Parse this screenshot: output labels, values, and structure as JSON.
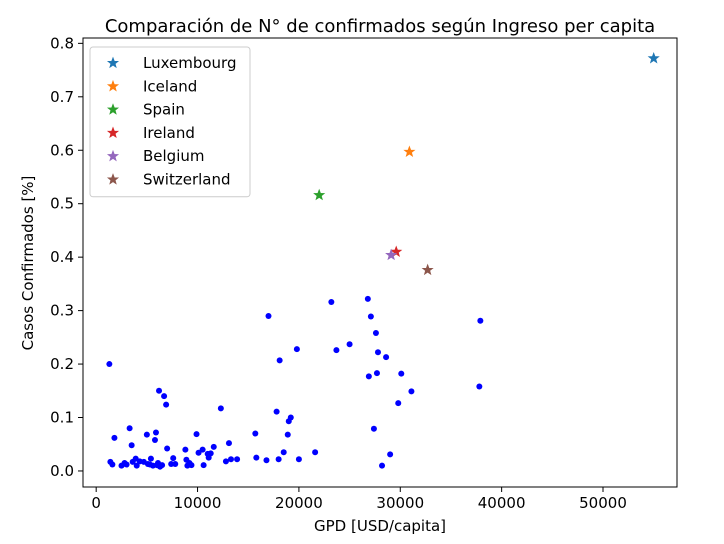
{
  "chart_data": {
    "type": "scatter",
    "title": "Comparación de N° de confirmados según Ingreso per capita",
    "xlabel": "GPD [USD/capita]",
    "ylabel": "Casos Confirmados [%]",
    "xlim": [
      -1300,
      57300
    ],
    "ylim": [
      -0.03,
      0.81
    ],
    "xticks": [
      0,
      10000,
      20000,
      30000,
      40000,
      50000
    ],
    "yticks": [
      0.0,
      0.1,
      0.2,
      0.3,
      0.4,
      0.5,
      0.6,
      0.7,
      0.8
    ],
    "xtick_labels": [
      "0",
      "10000",
      "20000",
      "30000",
      "40000",
      "50000"
    ],
    "ytick_labels": [
      "0.0",
      "0.1",
      "0.2",
      "0.3",
      "0.4",
      "0.5",
      "0.6",
      "0.7",
      "0.8"
    ],
    "legend_position": "top-left",
    "highlight_series": [
      {
        "name": "Luxembourg",
        "color": "#1f77b4",
        "marker": "star",
        "x": 55000,
        "y": 0.772
      },
      {
        "name": "Iceland",
        "color": "#ff7f0e",
        "marker": "star",
        "x": 30900,
        "y": 0.597
      },
      {
        "name": "Spain",
        "color": "#2ca02c",
        "marker": "star",
        "x": 22000,
        "y": 0.516
      },
      {
        "name": "Ireland",
        "color": "#d62728",
        "marker": "star",
        "x": 29600,
        "y": 0.41
      },
      {
        "name": "Belgium",
        "color": "#9467bd",
        "marker": "star",
        "x": 29100,
        "y": 0.404
      },
      {
        "name": "Switzerland",
        "color": "#8c564b",
        "marker": "star",
        "x": 32700,
        "y": 0.376
      }
    ],
    "other_countries": {
      "color": "#0000ff",
      "marker": "dot",
      "points": [
        [
          1300,
          0.2
        ],
        [
          1400,
          0.017
        ],
        [
          1600,
          0.012
        ],
        [
          1800,
          0.062
        ],
        [
          2500,
          0.01
        ],
        [
          2800,
          0.015
        ],
        [
          3000,
          0.012
        ],
        [
          3300,
          0.08
        ],
        [
          3500,
          0.048
        ],
        [
          3600,
          0.017
        ],
        [
          3900,
          0.023
        ],
        [
          4000,
          0.01
        ],
        [
          4300,
          0.018
        ],
        [
          4700,
          0.017
        ],
        [
          5000,
          0.068
        ],
        [
          5100,
          0.013
        ],
        [
          5300,
          0.012
        ],
        [
          5400,
          0.023
        ],
        [
          5600,
          0.01
        ],
        [
          5800,
          0.058
        ],
        [
          5900,
          0.072
        ],
        [
          6000,
          0.011
        ],
        [
          6100,
          0.015
        ],
        [
          6200,
          0.15
        ],
        [
          6300,
          0.008
        ],
        [
          6500,
          0.011
        ],
        [
          6700,
          0.14
        ],
        [
          6900,
          0.124
        ],
        [
          7000,
          0.042
        ],
        [
          7400,
          0.013
        ],
        [
          7600,
          0.024
        ],
        [
          7800,
          0.013
        ],
        [
          8800,
          0.04
        ],
        [
          8900,
          0.021
        ],
        [
          9000,
          0.01
        ],
        [
          9200,
          0.015
        ],
        [
          9400,
          0.011
        ],
        [
          9900,
          0.069
        ],
        [
          10100,
          0.034
        ],
        [
          10500,
          0.04
        ],
        [
          10600,
          0.011
        ],
        [
          11000,
          0.032
        ],
        [
          11100,
          0.025
        ],
        [
          11300,
          0.033
        ],
        [
          11600,
          0.045
        ],
        [
          12300,
          0.117
        ],
        [
          12800,
          0.018
        ],
        [
          13100,
          0.052
        ],
        [
          13300,
          0.022
        ],
        [
          13900,
          0.022
        ],
        [
          15700,
          0.07
        ],
        [
          15800,
          0.025
        ],
        [
          16800,
          0.02
        ],
        [
          17000,
          0.29
        ],
        [
          17800,
          0.111
        ],
        [
          18000,
          0.022
        ],
        [
          18100,
          0.207
        ],
        [
          18500,
          0.035
        ],
        [
          18900,
          0.068
        ],
        [
          19000,
          0.093
        ],
        [
          19200,
          0.1
        ],
        [
          19800,
          0.228
        ],
        [
          20000,
          0.022
        ],
        [
          21600,
          0.035
        ],
        [
          23200,
          0.316
        ],
        [
          23700,
          0.226
        ],
        [
          25000,
          0.237
        ],
        [
          26800,
          0.322
        ],
        [
          26900,
          0.177
        ],
        [
          27100,
          0.289
        ],
        [
          27400,
          0.079
        ],
        [
          27600,
          0.258
        ],
        [
          27700,
          0.183
        ],
        [
          27800,
          0.222
        ],
        [
          28200,
          0.01
        ],
        [
          28600,
          0.213
        ],
        [
          29000,
          0.031
        ],
        [
          29800,
          0.127
        ],
        [
          30100,
          0.182
        ],
        [
          31100,
          0.149
        ],
        [
          37800,
          0.158
        ],
        [
          37900,
          0.281
        ]
      ]
    }
  }
}
